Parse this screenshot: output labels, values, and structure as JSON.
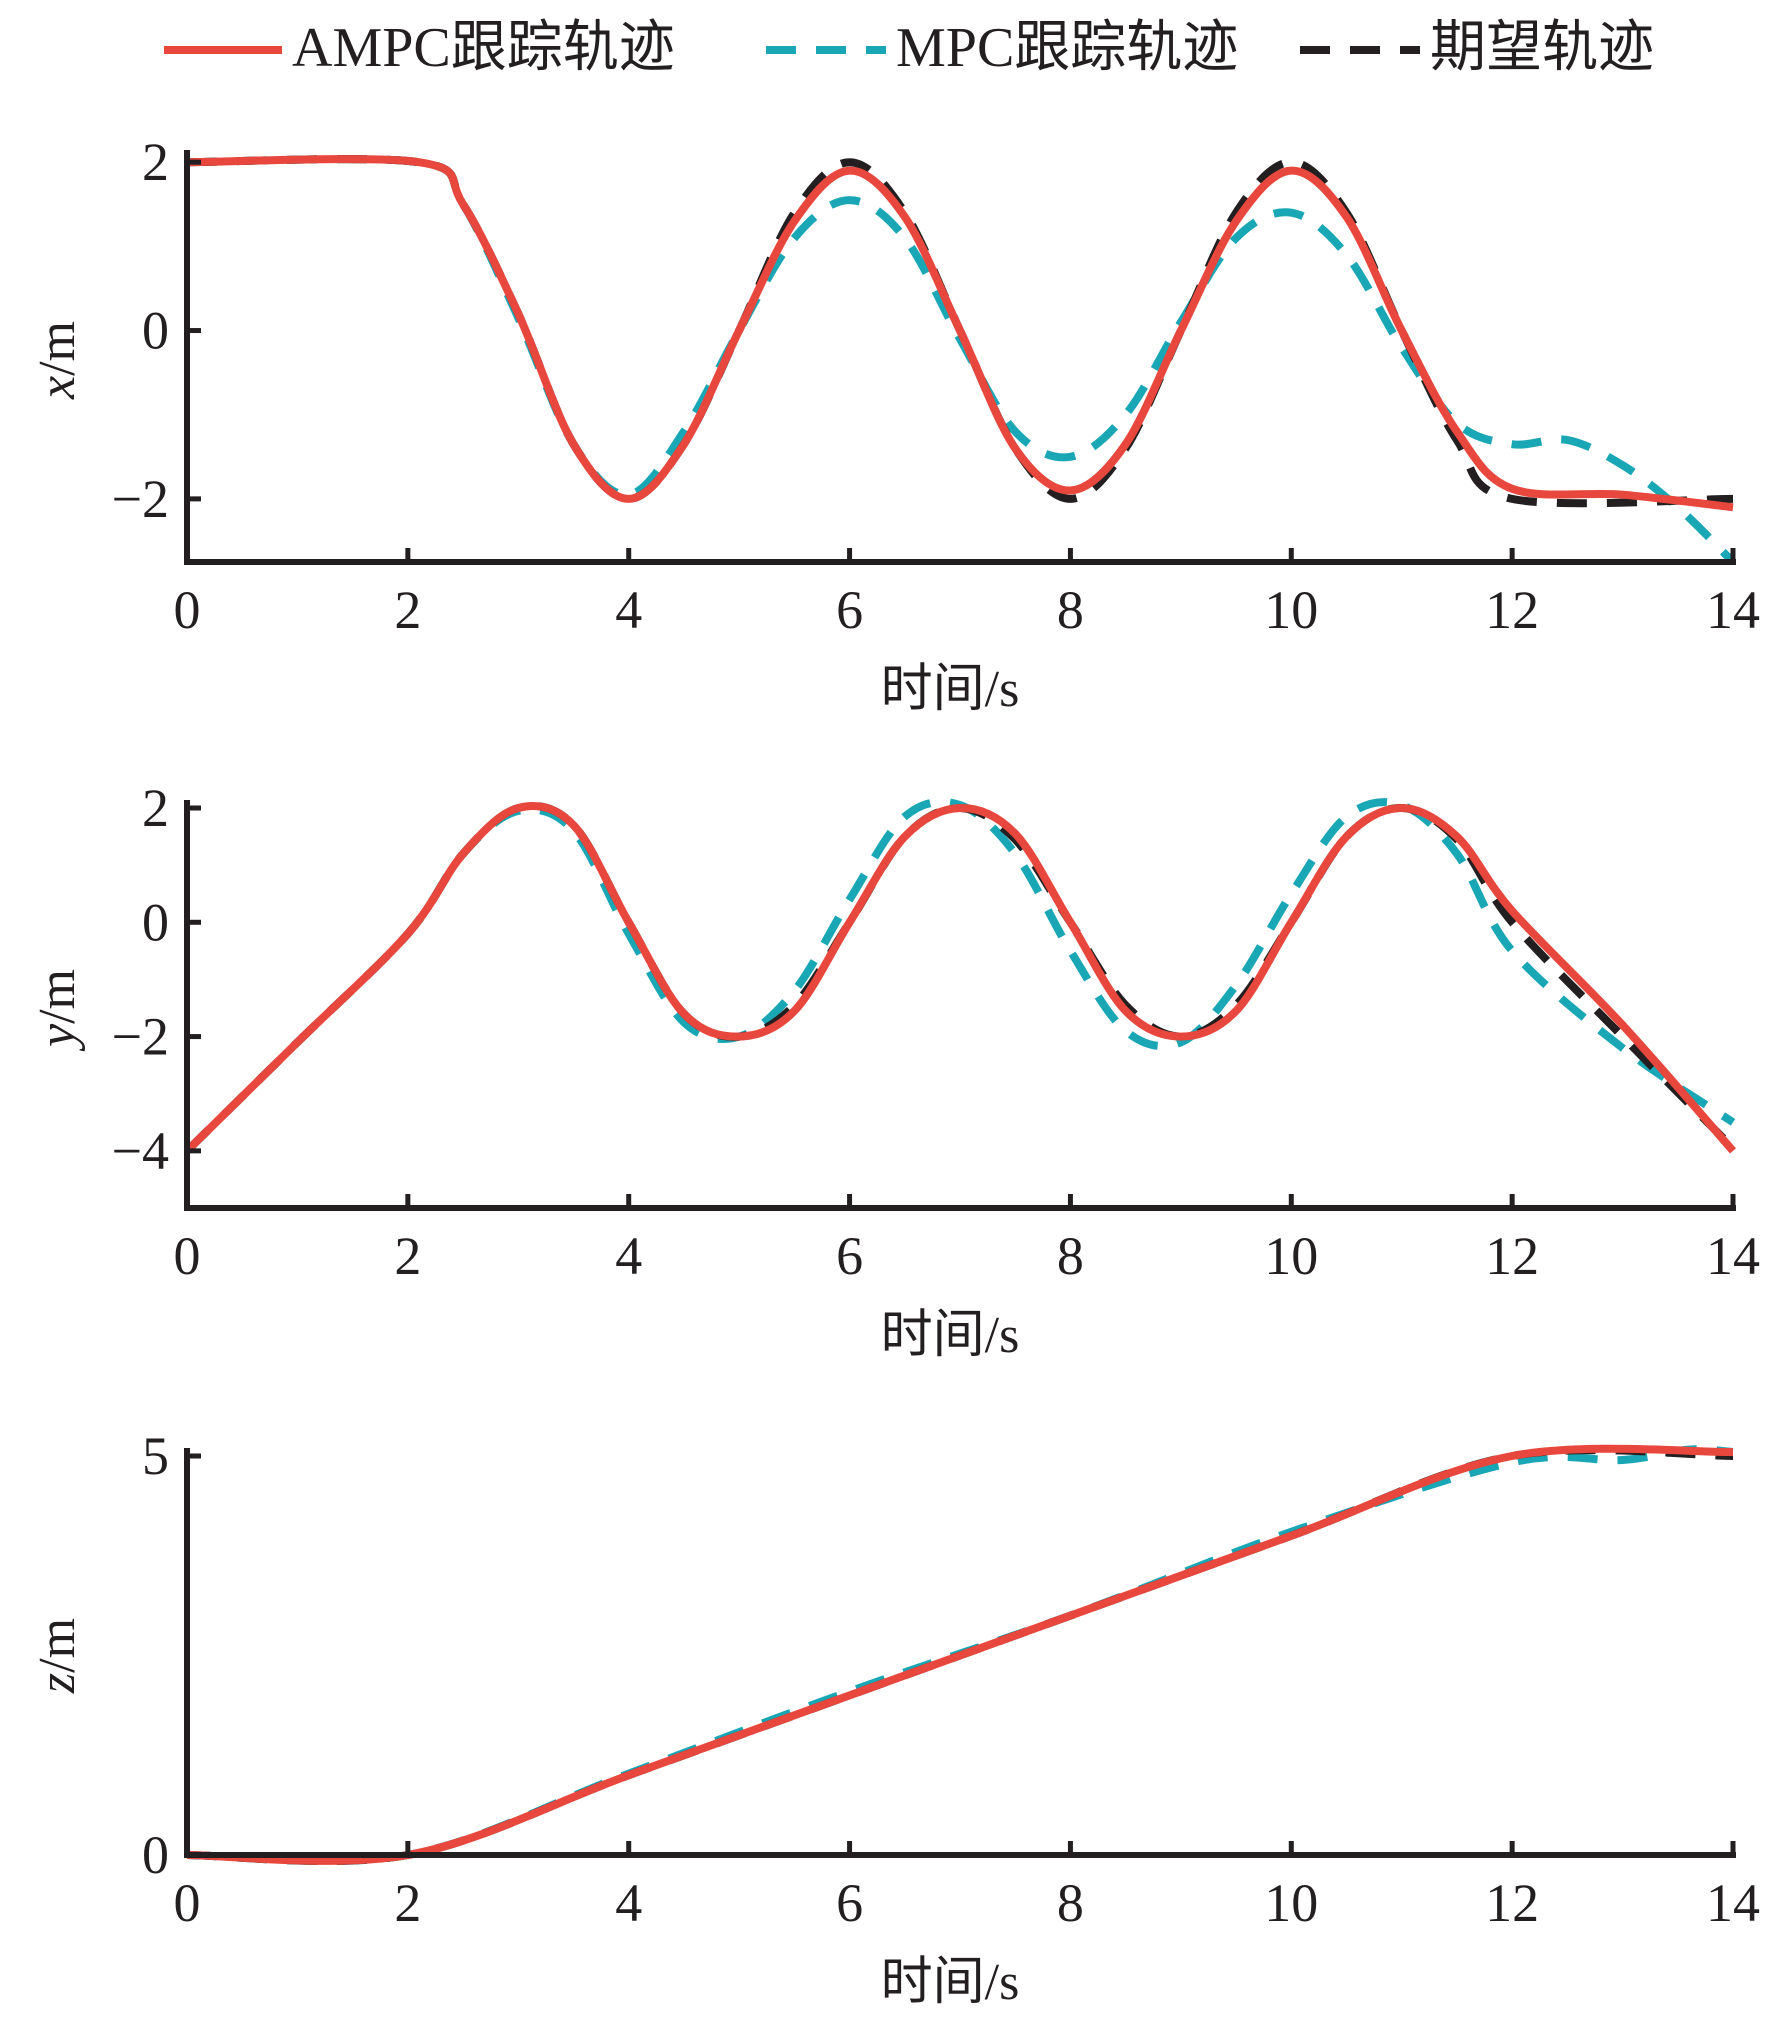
{
  "legend": {
    "items": [
      {
        "label": "AMPC跟踪轨迹",
        "color": "#e8473d",
        "style": "solid"
      },
      {
        "label": "MPC跟踪轨迹",
        "color": "#1aa7b5",
        "style": "dashed"
      },
      {
        "label": "期望轨迹",
        "color": "#231f20",
        "style": "dashed"
      }
    ]
  },
  "chart_data": [
    {
      "type": "line",
      "xlabel": "时间/s",
      "ylabel": "x/m",
      "xlim": [
        0,
        14
      ],
      "ylim": [
        -2.75,
        2.05
      ],
      "xticks": [
        0,
        2,
        4,
        6,
        8,
        10,
        12,
        14
      ],
      "yticks": [
        -2,
        0,
        2
      ],
      "ytick_labels": [
        "−2",
        "0",
        "2"
      ],
      "series": [
        {
          "name": "AMPC跟踪轨迹",
          "points": [
            [
              0,
              2
            ],
            [
              2.1,
              2
            ],
            [
              2.5,
              1.5
            ],
            [
              3,
              0.2
            ],
            [
              3.5,
              -1.35
            ],
            [
              4,
              -2
            ],
            [
              4.5,
              -1.35
            ],
            [
              5,
              0
            ],
            [
              5.5,
              1.3
            ],
            [
              6,
              1.9
            ],
            [
              6.5,
              1.35
            ],
            [
              7,
              0
            ],
            [
              7.5,
              -1.4
            ],
            [
              8,
              -1.9
            ],
            [
              8.5,
              -1.35
            ],
            [
              9,
              0
            ],
            [
              9.5,
              1.3
            ],
            [
              10,
              1.9
            ],
            [
              10.5,
              1.35
            ],
            [
              11,
              0
            ],
            [
              11.5,
              -1.2
            ],
            [
              12,
              -1.88
            ],
            [
              13,
              -1.95
            ],
            [
              14,
              -2.1
            ]
          ]
        },
        {
          "name": "MPC跟踪轨迹",
          "points": [
            [
              0,
              2
            ],
            [
              2.1,
              2
            ],
            [
              2.5,
              1.5
            ],
            [
              3,
              0.15
            ],
            [
              3.5,
              -1.35
            ],
            [
              4,
              -1.95
            ],
            [
              4.5,
              -1.2
            ],
            [
              5,
              0
            ],
            [
              5.5,
              1.1
            ],
            [
              6,
              1.55
            ],
            [
              6.5,
              1.1
            ],
            [
              7,
              -0.1
            ],
            [
              7.5,
              -1.2
            ],
            [
              8,
              -1.5
            ],
            [
              8.5,
              -1
            ],
            [
              9,
              0.1
            ],
            [
              9.5,
              1.1
            ],
            [
              10,
              1.4
            ],
            [
              10.5,
              0.9
            ],
            [
              11,
              -0.2
            ],
            [
              11.5,
              -1.1
            ],
            [
              12,
              -1.35
            ],
            [
              12.5,
              -1.3
            ],
            [
              13,
              -1.6
            ],
            [
              13.5,
              -2.1
            ],
            [
              14,
              -2.75
            ]
          ]
        },
        {
          "name": "期望轨迹",
          "points": [
            [
              0,
              2
            ],
            [
              2.1,
              2
            ],
            [
              2.5,
              1.5
            ],
            [
              3,
              0.2
            ],
            [
              3.5,
              -1.35
            ],
            [
              4,
              -2
            ],
            [
              4.5,
              -1.35
            ],
            [
              5,
              0
            ],
            [
              5.5,
              1.4
            ],
            [
              6,
              2
            ],
            [
              6.5,
              1.4
            ],
            [
              7,
              0
            ],
            [
              7.5,
              -1.4
            ],
            [
              8,
              -2
            ],
            [
              8.5,
              -1.4
            ],
            [
              9,
              0
            ],
            [
              9.5,
              1.4
            ],
            [
              10,
              2
            ],
            [
              10.5,
              1.4
            ],
            [
              11,
              0
            ],
            [
              11.5,
              -1.3
            ],
            [
              12,
              -2
            ],
            [
              14,
              -2
            ]
          ]
        }
      ]
    },
    {
      "type": "line",
      "xlabel": "时间/s",
      "ylabel": "y/m",
      "xlim": [
        0,
        14
      ],
      "ylim": [
        -5,
        2
      ],
      "xticks": [
        0,
        2,
        4,
        6,
        8,
        10,
        12,
        14
      ],
      "yticks": [
        -4,
        -2,
        0,
        2
      ],
      "ytick_labels": [
        "−4",
        "−2",
        "0",
        "2"
      ],
      "series": [
        {
          "name": "AMPC跟踪轨迹",
          "points": [
            [
              0,
              -4
            ],
            [
              1,
              -2.1
            ],
            [
              2,
              -0.2
            ],
            [
              2.5,
              1.2
            ],
            [
              3,
              2
            ],
            [
              3.5,
              1.7
            ],
            [
              4,
              0
            ],
            [
              4.5,
              -1.6
            ],
            [
              5,
              -2
            ],
            [
              5.5,
              -1.55
            ],
            [
              6,
              0
            ],
            [
              6.5,
              1.5
            ],
            [
              7,
              2
            ],
            [
              7.5,
              1.55
            ],
            [
              8,
              0
            ],
            [
              8.5,
              -1.55
            ],
            [
              9,
              -2
            ],
            [
              9.5,
              -1.55
            ],
            [
              10,
              0
            ],
            [
              10.5,
              1.5
            ],
            [
              11,
              2
            ],
            [
              11.5,
              1.5
            ],
            [
              12,
              0.2
            ],
            [
              13,
              -1.8
            ],
            [
              14,
              -4
            ]
          ]
        },
        {
          "name": "MPC跟踪轨迹",
          "points": [
            [
              0,
              -4
            ],
            [
              1,
              -2.1
            ],
            [
              2,
              -0.2
            ],
            [
              2.5,
              1.2
            ],
            [
              3,
              1.95
            ],
            [
              3.5,
              1.6
            ],
            [
              4,
              -0.2
            ],
            [
              4.5,
              -1.75
            ],
            [
              5,
              -2
            ],
            [
              5.5,
              -1.2
            ],
            [
              6,
              0.4
            ],
            [
              6.5,
              1.85
            ],
            [
              7,
              2.05
            ],
            [
              7.5,
              1.2
            ],
            [
              8,
              -0.5
            ],
            [
              8.5,
              -1.9
            ],
            [
              9,
              -2.1
            ],
            [
              9.5,
              -1.1
            ],
            [
              10,
              0.5
            ],
            [
              10.5,
              1.85
            ],
            [
              11,
              2.05
            ],
            [
              11.5,
              1.2
            ],
            [
              12,
              -0.5
            ],
            [
              13,
              -2.2
            ],
            [
              14,
              -3.5
            ]
          ]
        },
        {
          "name": "期望轨迹",
          "points": [
            [
              0,
              -4
            ],
            [
              1,
              -2.1
            ],
            [
              2,
              -0.2
            ],
            [
              2.5,
              1.2
            ],
            [
              3,
              2
            ],
            [
              3.5,
              1.7
            ],
            [
              4,
              0
            ],
            [
              4.5,
              -1.6
            ],
            [
              5,
              -2
            ],
            [
              5.5,
              -1.45
            ],
            [
              6,
              0
            ],
            [
              6.5,
              1.5
            ],
            [
              7,
              2
            ],
            [
              7.5,
              1.45
            ],
            [
              8,
              0
            ],
            [
              8.5,
              -1.45
            ],
            [
              9,
              -2
            ],
            [
              9.5,
              -1.45
            ],
            [
              10,
              0
            ],
            [
              10.5,
              1.5
            ],
            [
              11,
              2
            ],
            [
              11.5,
              1.45
            ],
            [
              12,
              0
            ],
            [
              13,
              -2
            ],
            [
              14,
              -3.95
            ]
          ]
        }
      ]
    },
    {
      "type": "line",
      "xlabel": "时间/s",
      "ylabel": "z/m",
      "xlim": [
        0,
        14
      ],
      "ylim": [
        0,
        5
      ],
      "xticks": [
        0,
        2,
        4,
        6,
        8,
        10,
        12,
        14
      ],
      "yticks": [
        0,
        5
      ],
      "ytick_labels": [
        "0",
        "5"
      ],
      "series": [
        {
          "name": "AMPC跟踪轨迹",
          "points": [
            [
              0,
              0
            ],
            [
              2,
              0
            ],
            [
              4,
              1
            ],
            [
              6,
              2
            ],
            [
              8,
              3
            ],
            [
              10,
              4
            ],
            [
              12,
              5
            ],
            [
              14,
              5.05
            ]
          ]
        },
        {
          "name": "MPC跟踪轨迹",
          "points": [
            [
              0,
              0
            ],
            [
              2,
              0
            ],
            [
              4,
              1.02
            ],
            [
              6,
              2.05
            ],
            [
              8,
              3
            ],
            [
              10,
              4.05
            ],
            [
              12,
              4.92
            ],
            [
              13,
              4.95
            ],
            [
              13.6,
              5.08
            ],
            [
              14,
              5.05
            ]
          ]
        },
        {
          "name": "期望轨迹",
          "points": [
            [
              0,
              0
            ],
            [
              2,
              0
            ],
            [
              4,
              1
            ],
            [
              6,
              2
            ],
            [
              8,
              3
            ],
            [
              10,
              4
            ],
            [
              12,
              5
            ],
            [
              14,
              5
            ]
          ]
        }
      ]
    }
  ]
}
